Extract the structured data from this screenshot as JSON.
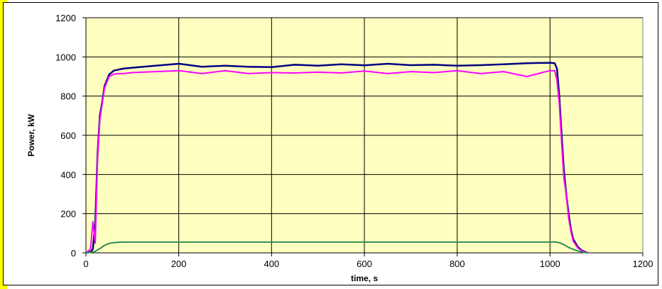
{
  "chart_data": {
    "type": "line",
    "title": "",
    "xlabel": "time, s",
    "ylabel": "Power, kW",
    "xlim": [
      0,
      1200
    ],
    "ylim": [
      0,
      1200
    ],
    "x_ticks": [
      "0",
      "200",
      "400",
      "600",
      "800",
      "1000",
      "1200"
    ],
    "y_ticks": [
      "0",
      "200",
      "400",
      "600",
      "800",
      "1000",
      "1200"
    ],
    "grid": "vertical lines at major x ticks; horizontal lines at major y ticks",
    "legend": "none",
    "background_color": "#ffffc0",
    "series": [
      {
        "color": "#000080",
        "x": [
          0,
          10,
          15,
          20,
          25,
          30,
          35,
          40,
          45,
          50,
          60,
          70,
          80,
          100,
          150,
          200,
          250,
          300,
          350,
          400,
          450,
          500,
          550,
          600,
          650,
          700,
          750,
          800,
          850,
          900,
          950,
          1000,
          1010,
          1015,
          1020,
          1025,
          1030,
          1035,
          1040,
          1045,
          1050,
          1060,
          1070,
          1080
        ],
        "y": [
          0,
          5,
          20,
          150,
          500,
          700,
          770,
          850,
          880,
          910,
          930,
          935,
          940,
          945,
          955,
          965,
          950,
          955,
          950,
          948,
          960,
          955,
          962,
          957,
          965,
          958,
          960,
          955,
          958,
          962,
          968,
          970,
          968,
          940,
          800,
          600,
          420,
          300,
          200,
          120,
          70,
          30,
          10,
          2
        ]
      },
      {
        "color": "#ff00ff",
        "x": [
          0,
          10,
          15,
          20,
          25,
          30,
          35,
          40,
          45,
          50,
          60,
          70,
          80,
          100,
          150,
          200,
          250,
          300,
          350,
          400,
          450,
          500,
          550,
          600,
          650,
          700,
          750,
          800,
          850,
          900,
          950,
          1000,
          1010,
          1015,
          1020,
          1025,
          1030,
          1035,
          1040,
          1045,
          1050,
          1060,
          1070,
          1080
        ],
        "y": [
          0,
          20,
          160,
          50,
          480,
          680,
          760,
          840,
          870,
          900,
          912,
          915,
          915,
          920,
          925,
          930,
          915,
          930,
          915,
          920,
          918,
          922,
          918,
          928,
          915,
          925,
          920,
          930,
          915,
          925,
          900,
          930,
          930,
          880,
          760,
          560,
          380,
          300,
          180,
          110,
          60,
          25,
          8,
          2
        ]
      },
      {
        "color": "#2e8b57",
        "x": [
          0,
          10,
          20,
          30,
          40,
          50,
          60,
          70,
          80,
          100,
          200,
          300,
          400,
          500,
          600,
          700,
          800,
          900,
          1000,
          1010,
          1020,
          1030,
          1040,
          1050,
          1060,
          1070,
          1080
        ],
        "y": [
          0,
          2,
          8,
          22,
          38,
          48,
          52,
          54,
          55,
          55,
          55,
          55,
          55,
          55,
          55,
          55,
          55,
          55,
          55,
          56,
          52,
          42,
          28,
          18,
          10,
          4,
          0
        ]
      }
    ]
  }
}
